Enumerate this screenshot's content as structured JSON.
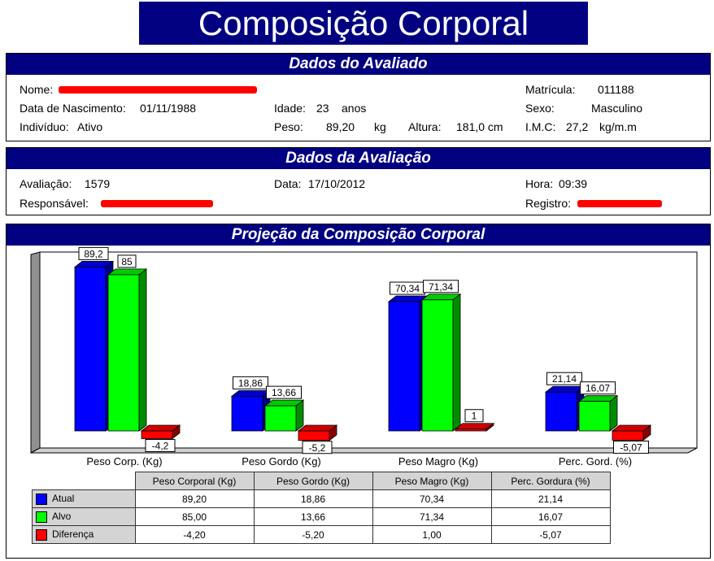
{
  "title": "Composição Corporal",
  "avaliado": {
    "header": "Dados do Avaliado",
    "nome_label": "Nome:",
    "matricula_label": "Matrícula:",
    "matricula": "011188",
    "nasc_label": "Data de Nascimento:",
    "nasc": "01/11/1988",
    "idade_label": "Idade:",
    "idade": "23",
    "idade_unit": "anos",
    "sexo_label": "Sexo:",
    "sexo": "Masculino",
    "individuo_label": "Indivíduo:",
    "individuo": "Ativo",
    "peso_label": "Peso:",
    "peso": "89,20",
    "peso_unit": "kg",
    "altura_label": "Altura:",
    "altura": "181,0 cm",
    "imc_label": "I.M.C:",
    "imc": "27,2",
    "imc_unit": "kg/m.m"
  },
  "avaliacao": {
    "header": "Dados da Avaliação",
    "avaliacao_label": "Avaliação:",
    "avaliacao": "1579",
    "data_label": "Data:",
    "data": "17/10/2012",
    "hora_label": "Hora:",
    "hora": "09:39",
    "responsavel_label": "Responsável:",
    "registro_label": "Registro:"
  },
  "projecao": {
    "header": "Projeção da Composição Corporal"
  },
  "chart_data": {
    "type": "bar",
    "categories": [
      "Peso Corp. (Kg)",
      "Peso Gordo (Kg)",
      "Peso Magro (Kg)",
      "Perc. Gord. (%)"
    ],
    "series": [
      {
        "name": "Atual",
        "color": "#0000ff",
        "values": [
          89.2,
          18.86,
          70.34,
          21.14
        ],
        "labels": [
          "89,2",
          "18,86",
          "70,34",
          "21,14"
        ]
      },
      {
        "name": "Alvo",
        "color": "#00ff00",
        "values": [
          85,
          13.66,
          71.34,
          16.07
        ],
        "labels": [
          "85",
          "13,66",
          "71,34",
          "16,07"
        ]
      },
      {
        "name": "Diferença",
        "color": "#ff0000",
        "values": [
          -4.2,
          -5.2,
          1,
          -5.07
        ],
        "labels": [
          "-4,2",
          "-5,2",
          "1",
          "-5,07"
        ]
      }
    ],
    "grid": false
  },
  "table": {
    "headers": [
      "Peso Corporal (Kg)",
      "Peso Gordo (Kg)",
      "Peso Magro (Kg)",
      "Perc. Gordura (%)"
    ],
    "rows": [
      {
        "label": "Atual",
        "color": "#0000ff",
        "cells": [
          "89,20",
          "18,86",
          "70,34",
          "21,14"
        ]
      },
      {
        "label": "Alvo",
        "color": "#00ff00",
        "cells": [
          "85,00",
          "13,66",
          "71,34",
          "16,07"
        ]
      },
      {
        "label": "Diferença",
        "color": "#ff0000",
        "cells": [
          "-4,20",
          "-5,20",
          "1,00",
          "-5,07"
        ]
      }
    ]
  }
}
